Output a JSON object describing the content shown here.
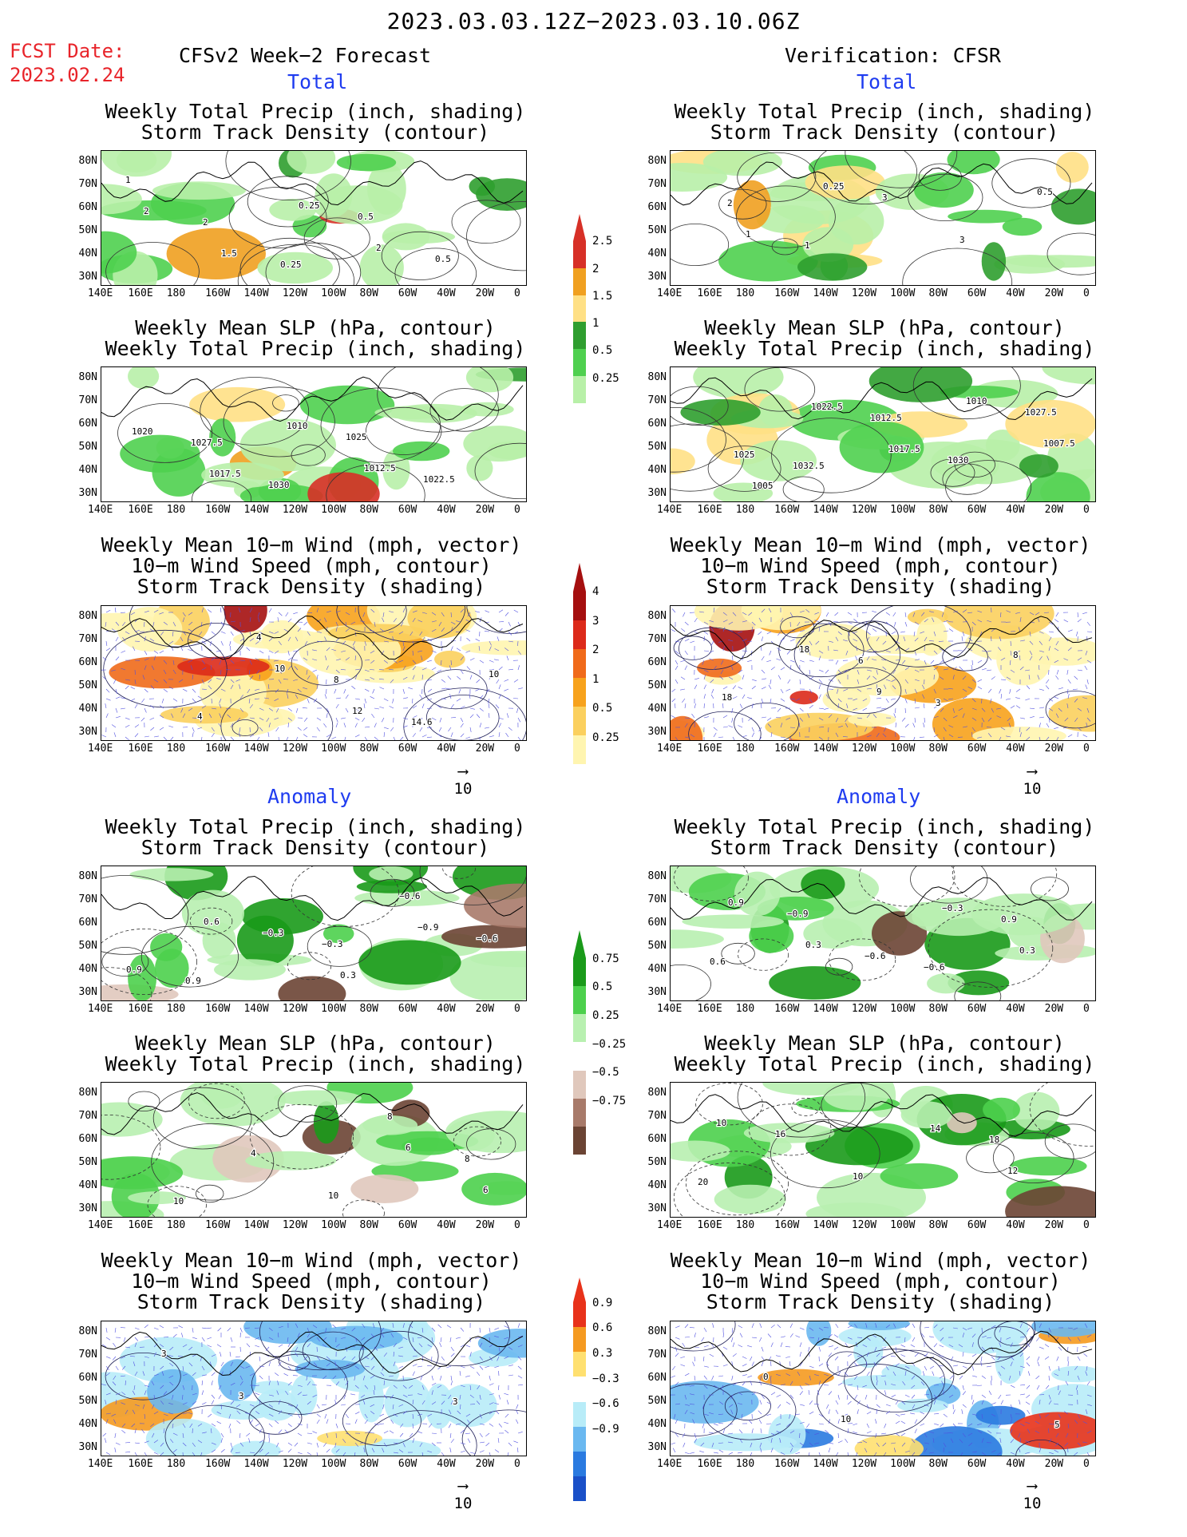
{
  "header": {
    "date_range": "2023.03.03.12Z−2023.03.10.06Z",
    "fcst_label": "FCST Date:",
    "fcst_date": "2023.02.24",
    "left_title": "CFSv2 Week−2 Forecast",
    "right_title": "Verification: CFSR",
    "total_label": "Total",
    "anomaly_label": "Anomaly"
  },
  "panel_titles": {
    "precip_storm": "Weekly Total Precip (inch, shading)\nStorm Track Density (contour)",
    "slp_precip": "Weekly Mean SLP (hPa, contour)\nWeekly Total Precip (inch, shading)",
    "wind_storm": "Weekly Mean 10−m Wind (mph, vector)\n10−m Wind Speed (mph, contour)\nStorm Track Density (shading)"
  },
  "lat_labels": [
    "80N",
    "70N",
    "60N",
    "50N",
    "40N",
    "30N"
  ],
  "lon_labels": [
    "140E",
    "160E",
    "180",
    "160W",
    "140W",
    "120W",
    "100W",
    "80W",
    "60W",
    "40W",
    "20W",
    "0"
  ],
  "vector_ref": "10",
  "colorbars": {
    "precip_total": {
      "labels": [
        "2.5",
        "2",
        "1.5",
        "1",
        "0.5",
        "0.25"
      ],
      "colors": [
        "#d73027",
        "#f0a020",
        "#ffe085",
        "#2f9e2f",
        "#4fd04f",
        "#b8f0a8"
      ]
    },
    "storm_total": {
      "labels": [
        "4",
        "3",
        "2",
        "1",
        "0.5",
        "0.25"
      ],
      "colors": [
        "#a50f0f",
        "#dc2a1a",
        "#f06a1a",
        "#f7a21c",
        "#fbd05e",
        "#fff5b0"
      ]
    },
    "precip_anom": {
      "labels": [
        "0.75",
        "0.5",
        "0.25",
        "−0.25",
        "−0.5",
        "−0.75"
      ],
      "colors": [
        "#1a9a1a",
        "#4cd04c",
        "#b8f0b0",
        "#ffffff",
        "#e0c8bc",
        "#a87a6a",
        "#6b4434"
      ]
    },
    "storm_anom": {
      "labels": [
        "0.9",
        "0.6",
        "0.3",
        "−0.3",
        "−0.6",
        "−0.9"
      ],
      "colors": [
        "#e8321a",
        "#f59a20",
        "#ffe070",
        "#ffffff",
        "#b8ecf8",
        "#6ab8f0",
        "#2a7ae0",
        "#1a50c8"
      ]
    }
  },
  "map_annotations": {
    "lt1": [
      "1",
      "2",
      "0.25",
      "0.5",
      "0.5",
      "2",
      "1.5",
      "0.25",
      "2"
    ],
    "rt1": [
      "2",
      "1",
      "3",
      "3",
      "0.5",
      "1",
      "0.25"
    ],
    "lt2": [
      "1027.5",
      "1030",
      "1025",
      "1022.5",
      "1020",
      "1017.5",
      "1010",
      "1012.5"
    ],
    "rt2": [
      "1032.5",
      "1012.5",
      "1030",
      "1027.5",
      "1025",
      "1022.5",
      "1017.5",
      "1010",
      "1007.5",
      "1005"
    ],
    "lt3": [
      "4",
      "8",
      "14.6",
      "10",
      "4",
      "10",
      "12"
    ],
    "rt3": [
      "6",
      "3",
      "8",
      "18",
      "18",
      "9"
    ],
    "la1": [
      "−0.3",
      "−0.6",
      "−0.6",
      "0.9",
      "−0.3",
      "0.3",
      "−0.9",
      "0.9",
      "0.6"
    ],
    "ra1": [
      "−0.6",
      "0.9",
      "0.6",
      "−0.9",
      "−0.6",
      "−0.3",
      "0.3",
      "0.9",
      "0.3"
    ],
    "la2": [
      "8",
      "8",
      "10",
      "4",
      "10",
      "6",
      "6"
    ],
    "ra2": [
      "18",
      "20",
      "16",
      "10",
      "14",
      "12",
      "10"
    ],
    "la3": [
      "3",
      "3",
      "3"
    ],
    "ra3": [
      "5",
      "0",
      "10"
    ]
  }
}
